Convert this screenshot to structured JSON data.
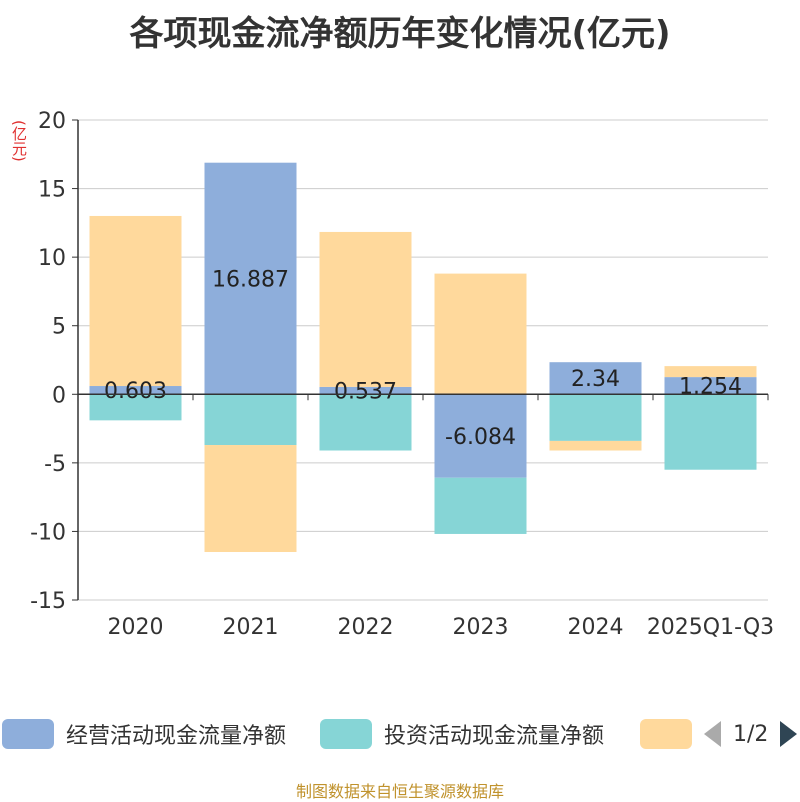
{
  "title": "各项现金流净额历年变化情况(亿元)",
  "unit_label": "(亿元)",
  "footer": "制图数据来自恒生聚源数据库",
  "legend_page": "1/2",
  "colors": {
    "operating": "#8eaedb",
    "investing": "#86d5d6",
    "financing": "#ffd99c",
    "axis": "#333333",
    "grid": "#cccccc"
  },
  "chart_data": {
    "type": "bar",
    "stacked": true,
    "title": "各项现金流净额历年变化情况(亿元)",
    "ylabel": "(亿元)",
    "ylim": [
      -15,
      20
    ],
    "yticks": [
      20,
      15,
      10,
      5,
      0,
      -5,
      -10,
      -15
    ],
    "categories": [
      "2020",
      "2021",
      "2022",
      "2023",
      "2024",
      "2025Q1-Q3"
    ],
    "series": [
      {
        "name": "经营活动现金流量净额",
        "key": "operating",
        "values": [
          0.603,
          16.887,
          0.537,
          -6.084,
          2.34,
          1.254
        ],
        "labels": [
          "0.603",
          "16.887",
          "0.537",
          "-6.084",
          "2.34",
          "1.254"
        ]
      },
      {
        "name": "投资活动现金流量净额",
        "key": "investing",
        "values": [
          -1.9,
          -3.7,
          -4.1,
          -4.1,
          -3.4,
          -5.5
        ]
      },
      {
        "name": "",
        "key": "financing",
        "values": [
          12.4,
          -7.8,
          11.3,
          8.8,
          -0.7,
          0.8
        ]
      }
    ]
  }
}
